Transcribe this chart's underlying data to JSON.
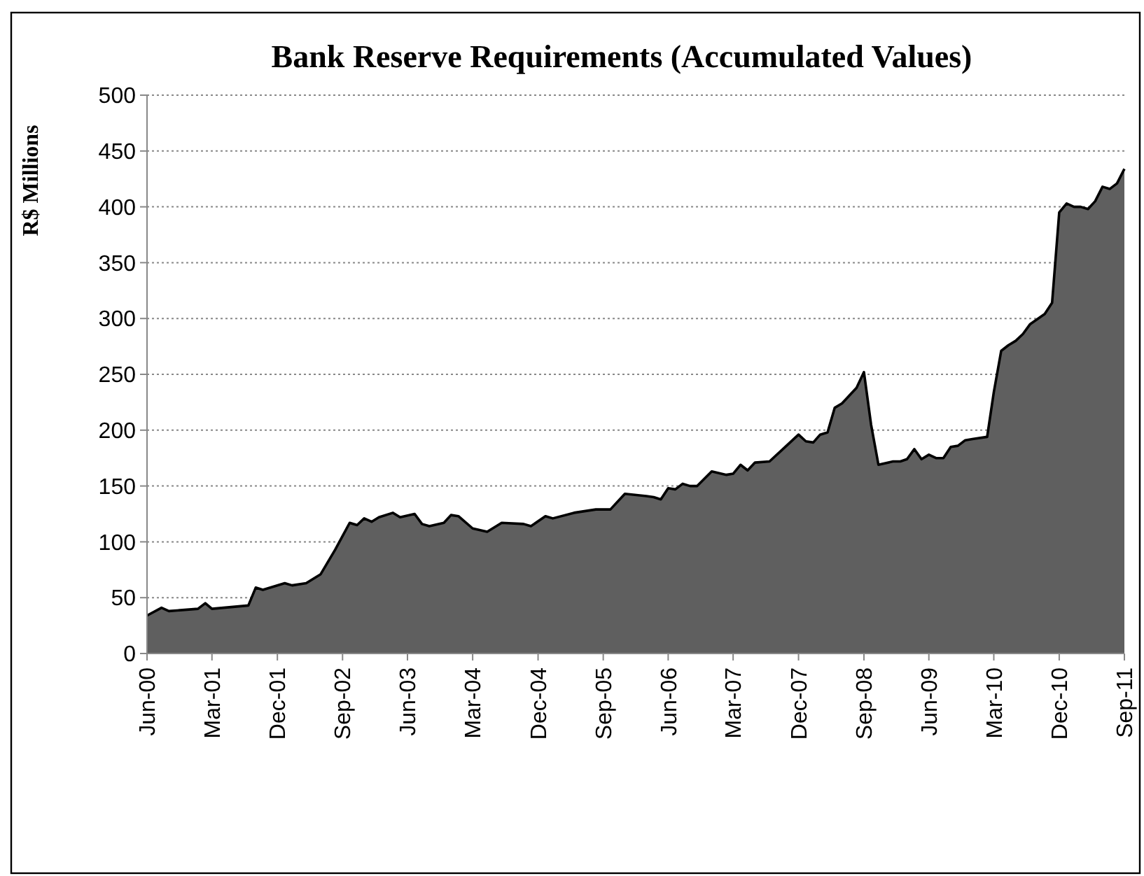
{
  "chart_data": {
    "type": "area",
    "title": "Bank Reserve Requirements (Accumulated Values)",
    "ylabel": "R$ Millions",
    "x": [
      "2000-06",
      "2000-08",
      "2000-09",
      "2001-01",
      "2001-02",
      "2001-03",
      "2001-08",
      "2001-09",
      "2001-10",
      "2002-01",
      "2002-02",
      "2002-04",
      "2002-06",
      "2002-08",
      "2002-10",
      "2002-11",
      "2002-12",
      "2003-01",
      "2003-02",
      "2003-04",
      "2003-05",
      "2003-07",
      "2003-08",
      "2003-09",
      "2003-11",
      "2003-12",
      "2004-01",
      "2004-03",
      "2004-05",
      "2004-07",
      "2004-10",
      "2004-11",
      "2005-01",
      "2005-02",
      "2005-05",
      "2005-08",
      "2005-10",
      "2005-12",
      "2006-03",
      "2006-04",
      "2006-05",
      "2006-06",
      "2006-07",
      "2006-08",
      "2006-09",
      "2006-10",
      "2006-12",
      "2007-02",
      "2007-03",
      "2007-04",
      "2007-05",
      "2007-06",
      "2007-08",
      "2007-10",
      "2007-12",
      "2008-01",
      "2008-02",
      "2008-03",
      "2008-04",
      "2008-05",
      "2008-06",
      "2008-08",
      "2008-09",
      "2008-10",
      "2008-11",
      "2009-01",
      "2009-02",
      "2009-03",
      "2009-04",
      "2009-05",
      "2009-06",
      "2009-07",
      "2009-08",
      "2009-09",
      "2009-10",
      "2009-11",
      "2009-12",
      "2010-02",
      "2010-03",
      "2010-04",
      "2010-05",
      "2010-06",
      "2010-07",
      "2010-08",
      "2010-10",
      "2010-11",
      "2010-12",
      "2011-01",
      "2011-02",
      "2011-03",
      "2011-04",
      "2011-05",
      "2011-06",
      "2011-07",
      "2011-08",
      "2011-09"
    ],
    "series": [
      {
        "color": "#5f5f5f",
        "values": [
          34,
          41,
          38,
          40,
          45,
          40,
          43,
          59,
          57,
          63,
          61,
          63,
          71,
          93,
          117,
          115,
          121,
          118,
          122,
          126,
          122,
          125,
          116,
          114,
          117,
          124,
          123,
          112,
          109,
          117,
          116,
          114,
          123,
          121,
          126,
          129,
          129,
          143,
          141,
          140,
          138,
          148,
          147,
          152,
          150,
          150,
          163,
          160,
          161,
          169,
          164,
          171,
          172,
          184,
          196,
          190,
          189,
          196,
          198,
          220,
          224,
          238,
          252,
          205,
          169,
          172,
          172,
          174,
          183,
          174,
          178,
          175,
          175,
          185,
          186,
          191,
          192,
          194,
          234,
          271,
          276,
          280,
          286,
          295,
          304,
          314,
          395,
          403,
          400,
          400,
          398,
          405,
          418,
          416,
          421,
          434
        ]
      }
    ],
    "xlim": [
      "2000-06",
      "2011-09"
    ],
    "xticks": [
      {
        "value": "2000-06",
        "label": "Jun-00"
      },
      {
        "value": "2001-03",
        "label": "Mar-01"
      },
      {
        "value": "2001-12",
        "label": "Dec-01"
      },
      {
        "value": "2002-09",
        "label": "Sep-02"
      },
      {
        "value": "2003-06",
        "label": "Jun-03"
      },
      {
        "value": "2004-03",
        "label": "Mar-04"
      },
      {
        "value": "2004-12",
        "label": "Dec-04"
      },
      {
        "value": "2005-09",
        "label": "Sep-05"
      },
      {
        "value": "2006-06",
        "label": "Jun-06"
      },
      {
        "value": "2007-03",
        "label": "Mar-07"
      },
      {
        "value": "2007-12",
        "label": "Dec-07"
      },
      {
        "value": "2008-09",
        "label": "Sep-08"
      },
      {
        "value": "2009-06",
        "label": "Jun-09"
      },
      {
        "value": "2010-03",
        "label": "Mar-10"
      },
      {
        "value": "2010-12",
        "label": "Dec-10"
      },
      {
        "value": "2011-09",
        "label": "Sep-11"
      }
    ],
    "ylim": [
      0,
      500
    ],
    "yticks": [
      0,
      50,
      100,
      150,
      200,
      250,
      300,
      350,
      400,
      450,
      500
    ],
    "grid": "y"
  }
}
